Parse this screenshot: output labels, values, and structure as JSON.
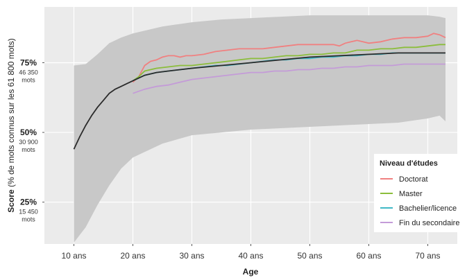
{
  "chart_data": {
    "type": "line",
    "title": "",
    "xlabel": "Age",
    "ylabel_main": "Score",
    "ylabel_sub": " (% de mots connus sur les 61 800 mots)",
    "xlim": [
      5,
      75
    ],
    "ylim": [
      10,
      95
    ],
    "grid": true,
    "legend_placement": "bottom-right",
    "background": "#ebebeb",
    "band_color": "#c8c8c8",
    "x_ticks": [
      {
        "value": 10,
        "label": "10 ans"
      },
      {
        "value": 20,
        "label": "20 ans"
      },
      {
        "value": 30,
        "label": "30 ans"
      },
      {
        "value": 40,
        "label": "40 ans"
      },
      {
        "value": 50,
        "label": "50 ans"
      },
      {
        "value": 60,
        "label": "60 ans"
      },
      {
        "value": 70,
        "label": "70 ans"
      }
    ],
    "y_ticks": [
      {
        "value": 75,
        "label": "75%",
        "sub1": "46 350",
        "sub2": "mots"
      },
      {
        "value": 50,
        "label": "50%",
        "sub1": "30 900",
        "sub2": "mots"
      },
      {
        "value": 25,
        "label": "25%",
        "sub1": "15 450",
        "sub2": "mots"
      }
    ],
    "band": {
      "x": [
        10,
        12,
        14,
        16,
        18,
        20,
        25,
        30,
        35,
        40,
        45,
        50,
        55,
        60,
        65,
        70,
        72,
        73
      ],
      "upper": [
        74,
        74.5,
        78,
        82,
        84,
        85.5,
        88,
        89.5,
        90.5,
        91,
        91.5,
        92,
        92,
        92,
        92,
        92,
        91.5,
        91
      ],
      "lower": [
        10.5,
        16,
        24,
        31,
        37,
        41,
        46,
        49,
        50,
        51,
        51.5,
        52,
        52.5,
        53,
        53.5,
        55,
        56,
        54
      ]
    },
    "overall": {
      "color": "#2a2a2a",
      "x": [
        10,
        11,
        12,
        13,
        14,
        15,
        16,
        17,
        18,
        19,
        20,
        22,
        24,
        26,
        28,
        30,
        35,
        40,
        45,
        50,
        55,
        60,
        65,
        70,
        73
      ],
      "y": [
        44,
        48.5,
        52.5,
        56,
        59,
        61.5,
        64,
        65.5,
        66.5,
        67.5,
        68.5,
        70.5,
        71.5,
        72,
        72.5,
        73,
        74,
        75,
        76,
        77,
        77.5,
        78,
        78.5,
        78.5,
        78.5
      ]
    },
    "legend_title": "Niveau d'études",
    "series": [
      {
        "name": "Doctorat",
        "color": "#f08080",
        "x": [
          20,
          21,
          22,
          23,
          24,
          25,
          26,
          27,
          28,
          29,
          30,
          32,
          34,
          36,
          38,
          40,
          42,
          44,
          46,
          48,
          50,
          52,
          54,
          55,
          56,
          57,
          58,
          59,
          60,
          62,
          64,
          66,
          68,
          70,
          71,
          72,
          73
        ],
        "y": [
          68,
          70,
          74,
          75.5,
          76,
          77,
          77.5,
          77.5,
          77,
          77.5,
          77.5,
          78,
          79,
          79.5,
          80,
          80,
          80,
          80.5,
          81,
          81.5,
          81.5,
          81.5,
          81.5,
          81,
          82,
          82.5,
          83,
          82.5,
          82,
          82.5,
          83.5,
          84,
          84,
          84.5,
          85.5,
          85,
          84
        ]
      },
      {
        "name": "Master",
        "color": "#8bbd3b",
        "x": [
          20,
          21,
          22,
          24,
          26,
          28,
          30,
          32,
          34,
          36,
          38,
          40,
          42,
          44,
          46,
          48,
          50,
          52,
          54,
          56,
          58,
          60,
          62,
          64,
          66,
          68,
          70,
          72,
          73
        ],
        "y": [
          68.5,
          70,
          72,
          73,
          73.5,
          74,
          74,
          74.5,
          75,
          75.5,
          76,
          76.5,
          76.5,
          77,
          77.5,
          77.5,
          78,
          78,
          78.5,
          78.5,
          79.5,
          79.5,
          80,
          80,
          80.5,
          80.5,
          81,
          81.5,
          81.5
        ]
      },
      {
        "name": "Bachelier/licence",
        "color": "#3fb8c6",
        "x": [
          20,
          22,
          24,
          26,
          28,
          30,
          32,
          34,
          36,
          38,
          40,
          42,
          44,
          46,
          48,
          50,
          52,
          54,
          56,
          58,
          60,
          62,
          64,
          66,
          68,
          70,
          72,
          73
        ],
        "y": [
          68.5,
          70.5,
          71.5,
          72,
          72.5,
          73,
          73.5,
          74,
          74,
          74.5,
          75,
          75.5,
          76,
          76,
          76.5,
          76.5,
          77,
          77,
          77.5,
          77.5,
          78,
          78,
          78.5,
          78.5,
          78.5,
          78.5,
          78.5,
          78.5
        ]
      },
      {
        "name": "Fin du secondaire",
        "color": "#c49bd8",
        "x": [
          20,
          22,
          24,
          26,
          28,
          30,
          32,
          34,
          36,
          38,
          40,
          42,
          44,
          46,
          48,
          50,
          52,
          54,
          56,
          58,
          60,
          62,
          64,
          66,
          68,
          70,
          72,
          73
        ],
        "y": [
          64,
          65.5,
          66.5,
          67,
          68,
          69,
          69.5,
          70,
          70.5,
          71,
          71.5,
          71.5,
          72,
          72,
          72.5,
          72.5,
          73,
          73,
          73.5,
          73.5,
          74,
          74,
          74,
          74.5,
          74.5,
          74.5,
          74.5,
          74.5
        ]
      }
    ]
  }
}
